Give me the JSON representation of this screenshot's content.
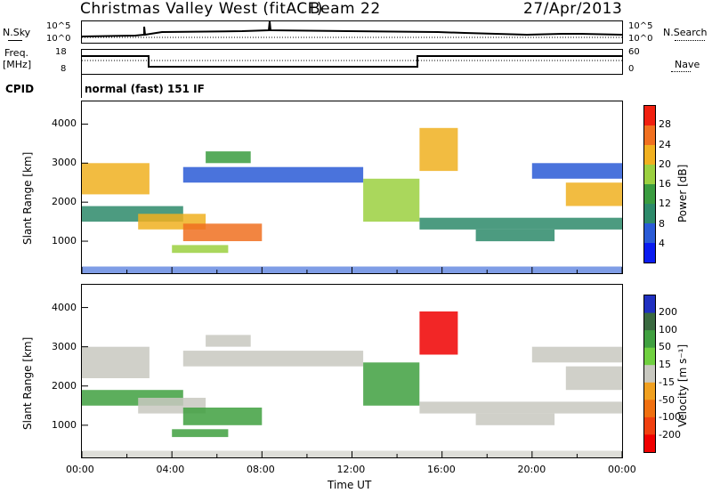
{
  "header": {
    "title": "Christmas Valley West (fitACF)",
    "beam": "Beam 22",
    "date": "27/Apr/2013"
  },
  "noise_panel": {
    "left_label": "N.Sky",
    "right_label": "N.Search",
    "ticks": [
      "10^5",
      "10^0"
    ]
  },
  "freq_panel": {
    "left_label_1": "Freq.",
    "left_label_2": "[MHz]",
    "left_ticks": [
      "18",
      "8"
    ],
    "right_ticks": [
      "60",
      "0"
    ],
    "right_label": "Nave",
    "colors": {
      "freq": "#000000",
      "nave": "#000000"
    }
  },
  "cpid_panel": {
    "label": "CPID",
    "program": "normal (fast) 151 IF"
  },
  "chart_data": [
    {
      "type": "heatmap",
      "name": "power",
      "ylabel": "Slant Range [km]",
      "yticks": [
        "1000",
        "2000",
        "3000",
        "4000"
      ],
      "ylim": [
        180,
        4580
      ],
      "xlim": [
        0,
        24
      ],
      "colorbar": {
        "label": "Power [dB]",
        "ticks": [
          "4",
          "8",
          "12",
          "16",
          "20",
          "24",
          "28"
        ],
        "colors": [
          "#0a1cf0",
          "#2a5bd6",
          "#2d8a6a",
          "#3a9c40",
          "#9bd040",
          "#f0b020",
          "#f07020",
          "#f02010"
        ]
      },
      "bands": [
        {
          "t0": 0.0,
          "t1": 3.0,
          "r0": 2200,
          "r1": 3000,
          "level": 20
        },
        {
          "t0": 0.0,
          "t1": 4.5,
          "r0": 1500,
          "r1": 1900,
          "level": 8
        },
        {
          "t0": 2.5,
          "t1": 5.5,
          "r0": 1300,
          "r1": 1700,
          "level": 20
        },
        {
          "t0": 4.5,
          "t1": 8.0,
          "r0": 1000,
          "r1": 1450,
          "level": 24
        },
        {
          "t0": 4.0,
          "t1": 6.5,
          "r0": 700,
          "r1": 900,
          "level": 16
        },
        {
          "t0": 5.5,
          "t1": 7.5,
          "r0": 3000,
          "r1": 3300,
          "level": 12
        },
        {
          "t0": 4.5,
          "t1": 12.5,
          "r0": 2500,
          "r1": 2900,
          "level": 6
        },
        {
          "t0": 12.5,
          "t1": 15.0,
          "r0": 1500,
          "r1": 2600,
          "level": 16
        },
        {
          "t0": 15.0,
          "t1": 16.7,
          "r0": 2800,
          "r1": 3900,
          "level": 20
        },
        {
          "t0": 15.0,
          "t1": 24.0,
          "r0": 1300,
          "r1": 1600,
          "level": 8
        },
        {
          "t0": 17.5,
          "t1": 21.0,
          "r0": 1000,
          "r1": 1300,
          "level": 8
        },
        {
          "t0": 21.5,
          "t1": 24.0,
          "r0": 1900,
          "r1": 2500,
          "level": 20
        },
        {
          "t0": 20.0,
          "t1": 24.0,
          "r0": 2600,
          "r1": 3000,
          "level": 6
        }
      ]
    },
    {
      "type": "heatmap",
      "name": "velocity",
      "ylabel": "Slant Range [km]",
      "yticks": [
        "1000",
        "2000",
        "3000",
        "4000"
      ],
      "ylim": [
        180,
        4580
      ],
      "xlim": [
        0,
        24
      ],
      "xlabel": "Time UT",
      "xticks": [
        "00:00",
        "04:00",
        "08:00",
        "12:00",
        "16:00",
        "20:00",
        "00:00"
      ],
      "colorbar": {
        "label": "Velocity [m s⁻¹]",
        "ticks": [
          "200",
          "100",
          "50",
          "15",
          "-15",
          "-50",
          "-100",
          "-200"
        ],
        "colors": [
          "#2030c0",
          "#3a6a40",
          "#40a040",
          "#70d040",
          "#c8c8c0",
          "#f0a020",
          "#f07010",
          "#f04010",
          "#f00000"
        ]
      },
      "bands": [
        {
          "t0": 0.0,
          "t1": 3.0,
          "r0": 2200,
          "r1": 3000,
          "vel": 0
        },
        {
          "t0": 0.0,
          "t1": 4.5,
          "r0": 1500,
          "r1": 1900,
          "vel": 60
        },
        {
          "t0": 2.5,
          "t1": 5.5,
          "r0": 1300,
          "r1": 1700,
          "vel": 0
        },
        {
          "t0": 4.5,
          "t1": 8.0,
          "r0": 1000,
          "r1": 1450,
          "vel": 60
        },
        {
          "t0": 4.0,
          "t1": 6.5,
          "r0": 700,
          "r1": 900,
          "vel": 60
        },
        {
          "t0": 5.5,
          "t1": 7.5,
          "r0": 3000,
          "r1": 3300,
          "vel": 0
        },
        {
          "t0": 4.5,
          "t1": 12.5,
          "r0": 2500,
          "r1": 2900,
          "vel": 0
        },
        {
          "t0": 12.5,
          "t1": 15.0,
          "r0": 1500,
          "r1": 2600,
          "vel": 60
        },
        {
          "t0": 15.0,
          "t1": 16.7,
          "r0": 2800,
          "r1": 3900,
          "vel": -250
        },
        {
          "t0": 15.0,
          "t1": 24.0,
          "r0": 1300,
          "r1": 1600,
          "vel": 0
        },
        {
          "t0": 17.5,
          "t1": 21.0,
          "r0": 1000,
          "r1": 1300,
          "vel": 0
        },
        {
          "t0": 21.5,
          "t1": 24.0,
          "r0": 1900,
          "r1": 2500,
          "vel": 0
        },
        {
          "t0": 20.0,
          "t1": 24.0,
          "r0": 2600,
          "r1": 3000,
          "vel": 0
        }
      ]
    }
  ]
}
